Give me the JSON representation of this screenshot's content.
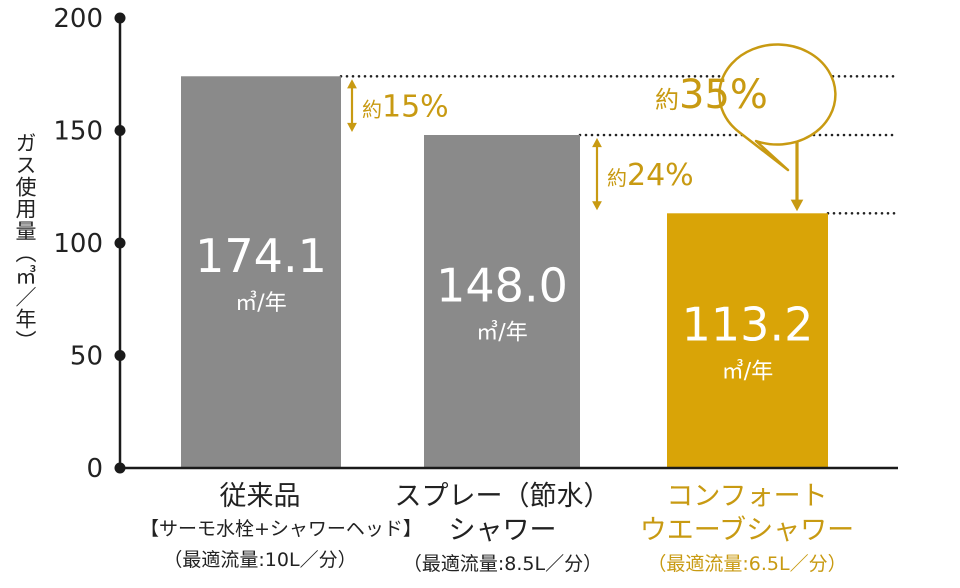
{
  "chart_data": {
    "type": "bar",
    "ylabel": "ガス使用量（㎥／年）",
    "ylim": [
      0,
      200
    ],
    "yticks": [
      "0",
      "50",
      "100",
      "150",
      "200"
    ],
    "grid": false,
    "categories": [
      {
        "line1": "従来品",
        "line2": "【サーモ水栓+シャワーヘッド】",
        "line3": "（最適流量:10L／分）"
      },
      {
        "line1": "スプレー（節水）",
        "line2": "シャワー",
        "line3": "（最適流量:8.5L／分）"
      },
      {
        "line1": "コンフォート",
        "line2": "ウエーブシャワー",
        "line3": "（最適流量:6.5L／分）"
      }
    ],
    "values": [
      174.1,
      148.0,
      113.2
    ],
    "value_labels": [
      "174.1",
      "148.0",
      "113.2"
    ],
    "unit_label": "㎥/年",
    "annotations": [
      {
        "text_prefix": "約",
        "text_value": "15%",
        "from": 174.1,
        "to": 148.0
      },
      {
        "text_prefix": "約",
        "text_value": "24%",
        "from": 148.0,
        "to": 113.2
      },
      {
        "text_prefix": "約",
        "text_value": "35%",
        "from": 174.1,
        "to": 113.2,
        "style": "speech-bubble"
      }
    ],
    "colors": {
      "bar": "#8a8a8a",
      "highlight_bar": "#d9a407",
      "accent": "#c89a12",
      "axis": "#1a1a1a",
      "bar_text": "#ffffff"
    }
  }
}
